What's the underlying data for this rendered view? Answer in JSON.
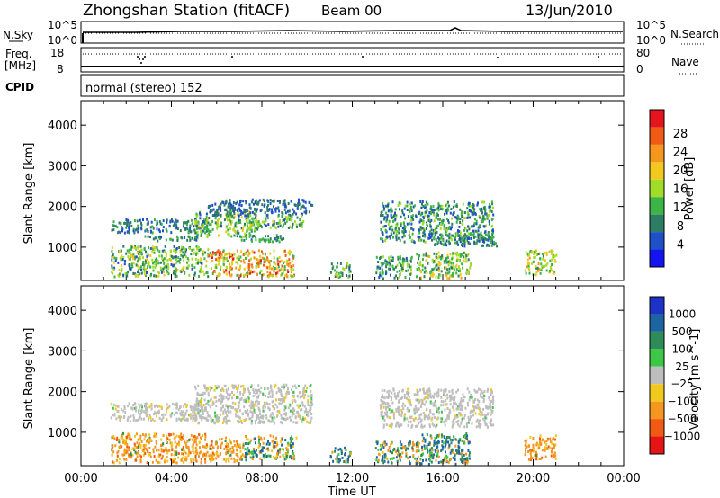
{
  "header": {
    "title": "Zhongshan Station (fitACF)",
    "beam": "Beam 00",
    "date": "13/Jun/2010"
  },
  "top_panels": {
    "nsky_label": "N.Sky",
    "nsky_ticks": [
      "10^5",
      "10^0"
    ],
    "nsearch_label": "N.Search",
    "nsearch_ticks": [
      "10^5",
      "10^0"
    ],
    "freq_label": "Freq.",
    "freq_unit": "[MHz]",
    "freq_ticks": [
      "18",
      "8"
    ],
    "nave_label": "Nave",
    "nave_ticks": [
      "80",
      "0"
    ],
    "cpid_label": "CPID",
    "cpid_text": "normal (stereo) 152"
  },
  "chart_data": [
    {
      "type": "heatmap",
      "name": "power",
      "ylabel": "Slant Range [km]",
      "xlabel": "",
      "ylim": [
        180,
        4600
      ],
      "yticks": [
        1000,
        2000,
        3000,
        4000
      ],
      "xticks": [
        "00:00",
        "04:00",
        "08:00",
        "12:00",
        "16:00",
        "20:00",
        "00:00"
      ],
      "colorbar_label": "Power [dB]",
      "colorbar_ticks": [
        "4",
        "8",
        "12",
        "16",
        "20",
        "24",
        "28"
      ],
      "colorbar_colors": [
        "#1414f0",
        "#1e50c8",
        "#2d7d64",
        "#3cb446",
        "#a0dc28",
        "#f0c81e",
        "#f5961e",
        "#f05a14",
        "#e6141e"
      ],
      "colorbar_range": [
        0,
        32
      ],
      "patches": [
        {
          "t0": 1.3,
          "t1": 5.6,
          "r0": 1380,
          "r1": 1720,
          "v0": 4,
          "v1": 12
        },
        {
          "t0": 2.8,
          "t1": 5.2,
          "r0": 1180,
          "r1": 1300,
          "v0": 6,
          "v1": 14
        },
        {
          "t0": 5.0,
          "t1": 7.8,
          "r0": 1280,
          "r1": 1900,
          "v0": 6,
          "v1": 20
        },
        {
          "t0": 5.6,
          "t1": 10.2,
          "r0": 1800,
          "r1": 2200,
          "v0": 4,
          "v1": 10
        },
        {
          "t0": 7.3,
          "t1": 9.9,
          "r0": 1500,
          "r1": 1820,
          "v0": 6,
          "v1": 18
        },
        {
          "t0": 7.0,
          "t1": 9.0,
          "r0": 1150,
          "r1": 1330,
          "v0": 6,
          "v1": 14
        },
        {
          "t0": 1.3,
          "t1": 5.6,
          "r0": 300,
          "r1": 1050,
          "v0": 6,
          "v1": 20
        },
        {
          "t0": 5.6,
          "t1": 9.4,
          "r0": 300,
          "r1": 950,
          "v0": 12,
          "v1": 30
        },
        {
          "t0": 11.0,
          "t1": 11.9,
          "r0": 280,
          "r1": 650,
          "v0": 6,
          "v1": 18
        },
        {
          "t0": 13.2,
          "t1": 18.2,
          "r0": 1150,
          "r1": 2150,
          "v0": 4,
          "v1": 16
        },
        {
          "t0": 13.0,
          "t1": 14.6,
          "r0": 250,
          "r1": 800,
          "v0": 6,
          "v1": 16
        },
        {
          "t0": 14.8,
          "t1": 17.2,
          "r0": 250,
          "r1": 900,
          "v0": 8,
          "v1": 22
        },
        {
          "t0": 15.6,
          "t1": 18.4,
          "r0": 1050,
          "r1": 1360,
          "v0": 6,
          "v1": 14
        },
        {
          "t0": 19.6,
          "t1": 21.0,
          "r0": 350,
          "r1": 950,
          "v0": 10,
          "v1": 22
        }
      ]
    },
    {
      "type": "heatmap",
      "name": "velocity",
      "ylabel": "Slant Range [km]",
      "xlabel": "Time UT",
      "ylim": [
        180,
        4600
      ],
      "yticks": [
        1000,
        2000,
        3000,
        4000
      ],
      "xticks": [
        "00:00",
        "04:00",
        "08:00",
        "12:00",
        "16:00",
        "20:00",
        "00:00"
      ],
      "colorbar_label": "Velocity [m s^-1]",
      "colorbar_ticks": [
        "1000",
        "500",
        "100",
        "25",
        "−25",
        "−100",
        "−500",
        "−1000"
      ],
      "colorbar_colors": [
        "#1e32c8",
        "#1e64a0",
        "#2d8c5a",
        "#3cc846",
        "#bebebe",
        "#f0c81e",
        "#f5961e",
        "#f05a14",
        "#e61414"
      ],
      "patches": [
        {
          "t0": 1.3,
          "t1": 5.6,
          "r0": 1300,
          "r1": 1750,
          "cls": "ground"
        },
        {
          "t0": 5.0,
          "t1": 10.2,
          "r0": 1250,
          "r1": 2200,
          "cls": "ground"
        },
        {
          "t0": 13.2,
          "t1": 18.2,
          "r0": 1150,
          "r1": 2100,
          "cls": "ground"
        },
        {
          "t0": 1.3,
          "t1": 5.6,
          "r0": 280,
          "r1": 1000,
          "cls": "neg"
        },
        {
          "t0": 5.6,
          "t1": 7.2,
          "r0": 300,
          "r1": 900,
          "cls": "neg"
        },
        {
          "t0": 7.2,
          "t1": 9.5,
          "r0": 350,
          "r1": 950,
          "cls": "mixed"
        },
        {
          "t0": 11.0,
          "t1": 11.9,
          "r0": 280,
          "r1": 650,
          "cls": "pos"
        },
        {
          "t0": 13.0,
          "t1": 15.0,
          "r0": 250,
          "r1": 800,
          "cls": "mixed"
        },
        {
          "t0": 15.0,
          "t1": 17.2,
          "r0": 250,
          "r1": 1000,
          "cls": "pos"
        },
        {
          "t0": 19.6,
          "t1": 21.0,
          "r0": 350,
          "r1": 950,
          "cls": "neg"
        }
      ]
    }
  ]
}
